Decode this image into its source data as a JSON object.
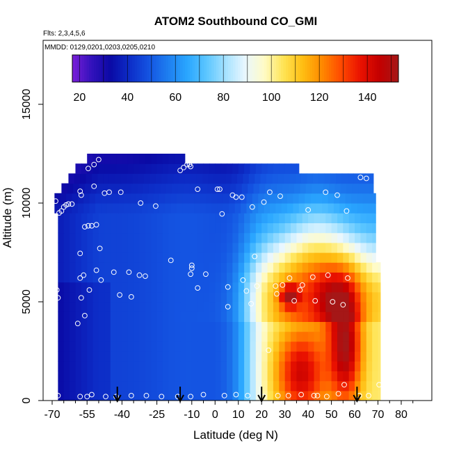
{
  "chart_data": {
    "type": "heatmap",
    "title": "ATOM2 Southbound CO_GMI",
    "flights_label": "Flts: 2,3,4,5,6",
    "dates_label": "MMDD: 0129,0201,0203,0205,0210",
    "xlabel": "Latitude (deg N)",
    "ylabel": "Altitude (m)",
    "xlim": [
      -70,
      85
    ],
    "ylim": [
      0,
      17500
    ],
    "x_ticks": [
      -70,
      -55,
      -40,
      -25,
      -10,
      0,
      10,
      20,
      30,
      40,
      50,
      60,
      70,
      80
    ],
    "x_ticklabels": [
      "-70",
      "-55",
      "-40",
      "-25",
      "-10",
      "0",
      "10",
      "20",
      "30",
      "40",
      "50",
      "60",
      "70",
      "80"
    ],
    "x_minor_ticks": [
      -65,
      -60,
      -50,
      -45,
      -35,
      -30,
      -20,
      -15,
      -5,
      5,
      15,
      25,
      35,
      45,
      55,
      65,
      75,
      85
    ],
    "y_ticks": [
      0,
      5000,
      10000,
      15000
    ],
    "y_ticklabels": [
      "0",
      "5000",
      "10000",
      "15000"
    ],
    "colorbar": {
      "range": [
        17,
        153
      ],
      "ticks": [
        20,
        40,
        60,
        80,
        100,
        120,
        140
      ],
      "ticklabels": [
        "20",
        "40",
        "60",
        "80",
        "100",
        "120",
        "140"
      ],
      "colors": [
        "#7a1fd9",
        "#3311bb",
        "#0a0aa5",
        "#0d2ec8",
        "#1454e2",
        "#1e7ff0",
        "#2aa6ff",
        "#5cc6ff",
        "#a6e2ff",
        "#e9f7ff",
        "#fffbc6",
        "#ffe455",
        "#ffbe12",
        "#ff8a00",
        "#ff4a00",
        "#ea1200",
        "#c40000",
        "#a51717"
      ]
    },
    "arrows_latitude": [
      -42,
      -15,
      20,
      61
    ],
    "altitude_levels_m": [
      250,
      750,
      1250,
      1750,
      2250,
      2750,
      3250,
      3750,
      4250,
      4750,
      5250,
      5750,
      6250,
      6750,
      7250,
      7750,
      8250,
      8750,
      9250,
      9750,
      10250,
      10750,
      11250,
      11750,
      12250
    ],
    "latitude_bands": [
      {
        "lat_min": -67.5,
        "lat_max": 71,
        "alt_min": 0,
        "alt_max": 6900
      },
      {
        "lat_min": -67.5,
        "lat_max": 69,
        "alt_min": 6900,
        "alt_max": 9600
      },
      {
        "lat_min": -69,
        "lat_max": 69,
        "alt_min": 9600,
        "alt_max": 10500
      },
      {
        "lat_min": -66,
        "lat_max": 68,
        "alt_min": 10500,
        "alt_max": 11000
      },
      {
        "lat_min": -63,
        "lat_max": 68,
        "alt_min": 11000,
        "alt_max": 11500
      },
      {
        "lat_min": -60,
        "lat_max": 36,
        "alt_min": 11500,
        "alt_max": 12000
      },
      {
        "lat_min": -55,
        "lat_max": -13,
        "alt_min": 12000,
        "alt_max": 12500
      }
    ],
    "grid": false,
    "legend": "colorbar top",
    "observation_points": [
      {
        "lat": -68,
        "alt": 5600
      },
      {
        "lat": -67.5,
        "alt": 5200
      },
      {
        "lat": -67.5,
        "alt": 250
      },
      {
        "lat": -68.5,
        "alt": 10100
      },
      {
        "lat": -67,
        "alt": 9500
      },
      {
        "lat": -66,
        "alt": 9600
      },
      {
        "lat": -65,
        "alt": 9800
      },
      {
        "lat": -64,
        "alt": 9900
      },
      {
        "lat": -63,
        "alt": 9950
      },
      {
        "lat": -61.5,
        "alt": 9950
      },
      {
        "lat": -58,
        "alt": 10600
      },
      {
        "lat": -57.5,
        "alt": 10400
      },
      {
        "lat": -58,
        "alt": 7450
      },
      {
        "lat": -58,
        "alt": 6200
      },
      {
        "lat": -57.5,
        "alt": 5200
      },
      {
        "lat": -56,
        "alt": 4300
      },
      {
        "lat": -59,
        "alt": 3900
      },
      {
        "lat": -56.5,
        "alt": 6350
      },
      {
        "lat": -56,
        "alt": 8800
      },
      {
        "lat": -54.5,
        "alt": 8850
      },
      {
        "lat": -53,
        "alt": 8850
      },
      {
        "lat": -51,
        "alt": 8900
      },
      {
        "lat": -54,
        "alt": 5600
      },
      {
        "lat": -51,
        "alt": 6600
      },
      {
        "lat": -49,
        "alt": 6100
      },
      {
        "lat": -49.5,
        "alt": 7700
      },
      {
        "lat": -47.5,
        "alt": 10500
      },
      {
        "lat": -45.5,
        "alt": 10550
      },
      {
        "lat": -52,
        "alt": 10850
      },
      {
        "lat": -54.5,
        "alt": 11750
      },
      {
        "lat": -52,
        "alt": 11950
      },
      {
        "lat": -50,
        "alt": 12200
      },
      {
        "lat": -40.5,
        "alt": 10550
      },
      {
        "lat": -43.5,
        "alt": 6500
      },
      {
        "lat": -37,
        "alt": 6500
      },
      {
        "lat": -32.5,
        "alt": 6350
      },
      {
        "lat": -30,
        "alt": 6300
      },
      {
        "lat": -41,
        "alt": 5350
      },
      {
        "lat": -36,
        "alt": 5250
      },
      {
        "lat": -32,
        "alt": 10000
      },
      {
        "lat": -25.5,
        "alt": 9850
      },
      {
        "lat": -19,
        "alt": 7100
      },
      {
        "lat": -15,
        "alt": 11650
      },
      {
        "lat": -13.5,
        "alt": 11800
      },
      {
        "lat": -12,
        "alt": 11950
      },
      {
        "lat": -11,
        "alt": 11950
      },
      {
        "lat": -10.5,
        "alt": 11850
      },
      {
        "lat": -7.5,
        "alt": 10700
      },
      {
        "lat": -10,
        "alt": 6850
      },
      {
        "lat": -10,
        "alt": 6700
      },
      {
        "lat": -10.5,
        "alt": 6400
      },
      {
        "lat": -7.5,
        "alt": 5700
      },
      {
        "lat": -4,
        "alt": 6400
      },
      {
        "lat": 1,
        "alt": 10700
      },
      {
        "lat": 2,
        "alt": 10700
      },
      {
        "lat": 3,
        "alt": 9450
      },
      {
        "lat": 5.5,
        "alt": 5750
      },
      {
        "lat": 7.5,
        "alt": 10400
      },
      {
        "lat": 9,
        "alt": 10300
      },
      {
        "lat": 11.5,
        "alt": 10300
      },
      {
        "lat": 12,
        "alt": 6100
      },
      {
        "lat": 13.5,
        "alt": 5550
      },
      {
        "lat": 15.5,
        "alt": 4900
      },
      {
        "lat": 16,
        "alt": 9800
      },
      {
        "lat": 17,
        "alt": 7300
      },
      {
        "lat": 18,
        "alt": 5800
      },
      {
        "lat": 21,
        "alt": 10050
      },
      {
        "lat": 23.5,
        "alt": 10550
      },
      {
        "lat": 26,
        "alt": 5800
      },
      {
        "lat": 26.5,
        "alt": 5400
      },
      {
        "lat": 28,
        "alt": 10350
      },
      {
        "lat": 29,
        "alt": 5850
      },
      {
        "lat": 32,
        "alt": 6200
      },
      {
        "lat": 34,
        "alt": 5050
      },
      {
        "lat": 36.5,
        "alt": 5600
      },
      {
        "lat": 37.5,
        "alt": 5850
      },
      {
        "lat": 40,
        "alt": 9650
      },
      {
        "lat": 42,
        "alt": 6250
      },
      {
        "lat": 43,
        "alt": 5050
      },
      {
        "lat": 47.5,
        "alt": 10550
      },
      {
        "lat": 48.5,
        "alt": 6350
      },
      {
        "lat": 50.5,
        "alt": 5000
      },
      {
        "lat": 52.5,
        "alt": 10400
      },
      {
        "lat": 55,
        "alt": 4850
      },
      {
        "lat": 56.5,
        "alt": 9600
      },
      {
        "lat": 57,
        "alt": 6200
      },
      {
        "lat": 62.5,
        "alt": 11300
      },
      {
        "lat": 65,
        "alt": 11250
      },
      {
        "lat": 5.5,
        "alt": 4750
      },
      {
        "lat": 23,
        "alt": 2550
      },
      {
        "lat": 55.5,
        "alt": 800
      },
      {
        "lat": 70.5,
        "alt": 800
      },
      {
        "lat": -58,
        "alt": 200
      },
      {
        "lat": -55,
        "alt": 200
      },
      {
        "lat": -53,
        "alt": 300
      },
      {
        "lat": -47,
        "alt": 200
      },
      {
        "lat": -42.5,
        "alt": 200
      },
      {
        "lat": -36,
        "alt": 250
      },
      {
        "lat": -29.5,
        "alt": 250
      },
      {
        "lat": -23,
        "alt": 200
      },
      {
        "lat": -16,
        "alt": 200
      },
      {
        "lat": -10.5,
        "alt": 200
      },
      {
        "lat": -5,
        "alt": 300
      },
      {
        "lat": 4,
        "alt": 250
      },
      {
        "lat": 9,
        "alt": 300
      },
      {
        "lat": 14,
        "alt": 250
      },
      {
        "lat": 21,
        "alt": 200
      },
      {
        "lat": 27,
        "alt": 250
      },
      {
        "lat": 31.5,
        "alt": 250
      },
      {
        "lat": 37,
        "alt": 300
      },
      {
        "lat": 44,
        "alt": 250
      },
      {
        "lat": 48,
        "alt": 200
      },
      {
        "lat": 53,
        "alt": 350
      },
      {
        "lat": 62,
        "alt": 250
      },
      {
        "lat": 66,
        "alt": 250
      },
      {
        "lat": 42.5,
        "alt": 250
      }
    ],
    "hotspots": [
      {
        "lat": 37,
        "alt": 1400,
        "sx": 11,
        "sy": 2300,
        "amp": 40
      },
      {
        "lat": 56,
        "alt": 2800,
        "sx": 7,
        "sy": 3000,
        "amp": 48
      },
      {
        "lat": 32,
        "alt": 5300,
        "sx": 4,
        "sy": 550,
        "amp": 38
      },
      {
        "lat": 49,
        "alt": 5000,
        "sx": 8,
        "sy": 1500,
        "amp": 18
      }
    ]
  }
}
